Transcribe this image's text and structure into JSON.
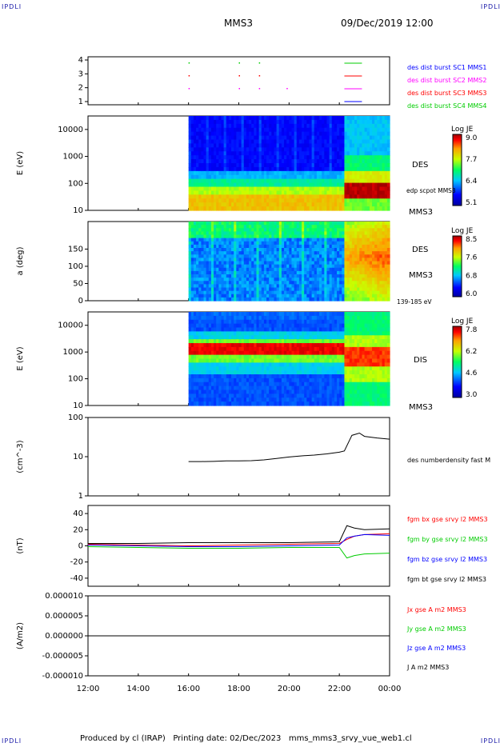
{
  "corners": {
    "tl": "IPDLI",
    "tr": "IPDLI",
    "bl": "IPDLI",
    "br": "IPDLI"
  },
  "header": {
    "spacecraft": "MMS3",
    "datetime": "09/Dec/2019 12:00"
  },
  "footer": {
    "text": "Produced by cl (IRAP)   Printing date: 02/Dec/2023   mms_mms3_srvy_vue_web1.cl"
  },
  "colors": {
    "blue": "#0000ff",
    "red": "#ff0000",
    "green": "#00cc00",
    "magenta": "#ff00ff",
    "black": "#000000"
  },
  "chart_data": [
    {
      "type": "scatter",
      "panel": "burst availability",
      "yticks": [
        "1",
        "2",
        "3",
        "4"
      ],
      "legend": [
        {
          "text": "des dist burst SC1 MMS1",
          "color": "#0000ff"
        },
        {
          "text": "des dist burst SC2 MMS2",
          "color": "#ff00ff"
        },
        {
          "text": "des dist burst SC3 MMS3",
          "color": "#ff0000"
        },
        {
          "text": "des dist burst SC4 MMS4",
          "color": "#00cc00"
        }
      ]
    },
    {
      "type": "heatmap",
      "panel": "DES energy spectrogram",
      "ylabel": "E (eV)",
      "yticks": [
        "10",
        "100",
        "1000",
        "10000"
      ],
      "ylog": true,
      "colorbar": {
        "title": "Log JE",
        "ticks": [
          "9.0",
          "7.7",
          "6.4",
          "5.1"
        ]
      },
      "side_labels": [
        "DES",
        "edp scpot MMS3",
        "MMS3"
      ]
    },
    {
      "type": "heatmap",
      "panel": "DES pitch angle",
      "ylabel": "a (deg)",
      "yticks": [
        "0",
        "50",
        "100",
        "150"
      ],
      "ylim": [
        0,
        180
      ],
      "colorbar": {
        "title": "Log JE",
        "ticks": [
          "8.5",
          "7.6",
          "6.8",
          "6.0"
        ]
      },
      "side_labels": [
        "DES",
        "MMS3",
        "139-185 eV"
      ]
    },
    {
      "type": "heatmap",
      "panel": "DIS energy spectrogram",
      "ylabel": "E (eV)",
      "yticks": [
        "10",
        "100",
        "1000",
        "10000"
      ],
      "ylog": true,
      "colorbar": {
        "title": "Log JE",
        "ticks": [
          "7.8",
          "6.2",
          "4.6",
          "3.0"
        ]
      },
      "side_labels": [
        "DIS",
        "MMS3"
      ]
    },
    {
      "type": "line",
      "panel": "density",
      "ylabel": "(cm^-3)",
      "yticks": [
        "1",
        "10",
        "100"
      ],
      "ylog": true,
      "ylim": [
        1,
        100
      ],
      "legend": [
        {
          "text": "des numberdensity fast M",
          "color": "#000000"
        }
      ],
      "series": [
        {
          "name": "des numberdensity fast M",
          "color": "#000000",
          "x": [
            16.0,
            16.5,
            17.0,
            17.5,
            18.0,
            18.5,
            19.0,
            19.5,
            20.0,
            20.5,
            21.0,
            21.5,
            22.0,
            22.2,
            22.5,
            22.8,
            23.0,
            23.5,
            24.0
          ],
          "y": [
            7.5,
            7.5,
            7.6,
            7.8,
            7.8,
            7.9,
            8.3,
            9.0,
            9.8,
            10.5,
            11.0,
            11.8,
            13.0,
            14.0,
            35.0,
            40.0,
            33.0,
            30.0,
            28.0
          ]
        }
      ]
    },
    {
      "type": "line",
      "panel": "magnetic field",
      "ylabel": "(nT)",
      "yticks": [
        "-40",
        "-20",
        "0",
        "20",
        "40"
      ],
      "ylim": [
        -50,
        50
      ],
      "legend": [
        {
          "text": "fgm bx gse srvy l2 MMS3",
          "color": "#ff0000"
        },
        {
          "text": "fgm by gse srvy l2 MMS3",
          "color": "#00cc00"
        },
        {
          "text": "fgm bz gse srvy l2 MMS3",
          "color": "#0000ff"
        },
        {
          "text": "fgm bt gse srvy l2 MMS3",
          "color": "#000000"
        }
      ],
      "series": [
        {
          "name": "fgm bx gse srvy l2 MMS3",
          "color": "#ff0000",
          "x": [
            12,
            14,
            16,
            18,
            20,
            22,
            22.3,
            22.6,
            23,
            24
          ],
          "y": [
            2,
            1,
            0,
            1,
            2,
            3,
            8,
            12,
            14,
            15
          ]
        },
        {
          "name": "fgm by gse srvy l2 MMS3",
          "color": "#00cc00",
          "x": [
            12,
            14,
            16,
            18,
            20,
            22,
            22.3,
            22.6,
            23,
            24
          ],
          "y": [
            -1,
            -2,
            -3,
            -3,
            -2,
            -2,
            -15,
            -12,
            -10,
            -9
          ]
        },
        {
          "name": "fgm bz gse srvy l2 MMS3",
          "color": "#0000ff",
          "x": [
            12,
            14,
            16,
            18,
            20,
            22,
            22.3,
            22.6,
            23,
            24
          ],
          "y": [
            1,
            0,
            -1,
            -1,
            0,
            1,
            10,
            12,
            14,
            13
          ]
        },
        {
          "name": "fgm bt gse srvy l2 MMS3",
          "color": "#000000",
          "x": [
            12,
            14,
            16,
            18,
            20,
            22,
            22.3,
            22.6,
            23,
            24
          ],
          "y": [
            3,
            3,
            4,
            4,
            4,
            5,
            25,
            22,
            20,
            21
          ]
        }
      ]
    },
    {
      "type": "line",
      "panel": "current density",
      "ylabel": "(A/m2)",
      "yticks": [
        "-0.000010",
        "-0.000005",
        "0.000000",
        "0.000005",
        "0.000010"
      ],
      "ylim": [
        -1e-05,
        1e-05
      ],
      "legend": [
        {
          "text": "Jx gse A m2 MMS3",
          "color": "#ff0000"
        },
        {
          "text": "Jy gse A m2 MMS3",
          "color": "#00cc00"
        },
        {
          "text": "Jz gse A m2 MMS3",
          "color": "#0000ff"
        },
        {
          "text": "J A m2 MMS3",
          "color": "#000000"
        }
      ],
      "series": [
        {
          "name": "J A m2 MMS3",
          "color": "#000000",
          "x": [
            12,
            24
          ],
          "y": [
            0,
            0
          ]
        }
      ]
    }
  ],
  "xaxis": {
    "ticks": [
      "12:00",
      "14:00",
      "16:00",
      "18:00",
      "20:00",
      "22:00",
      "00:00"
    ]
  }
}
